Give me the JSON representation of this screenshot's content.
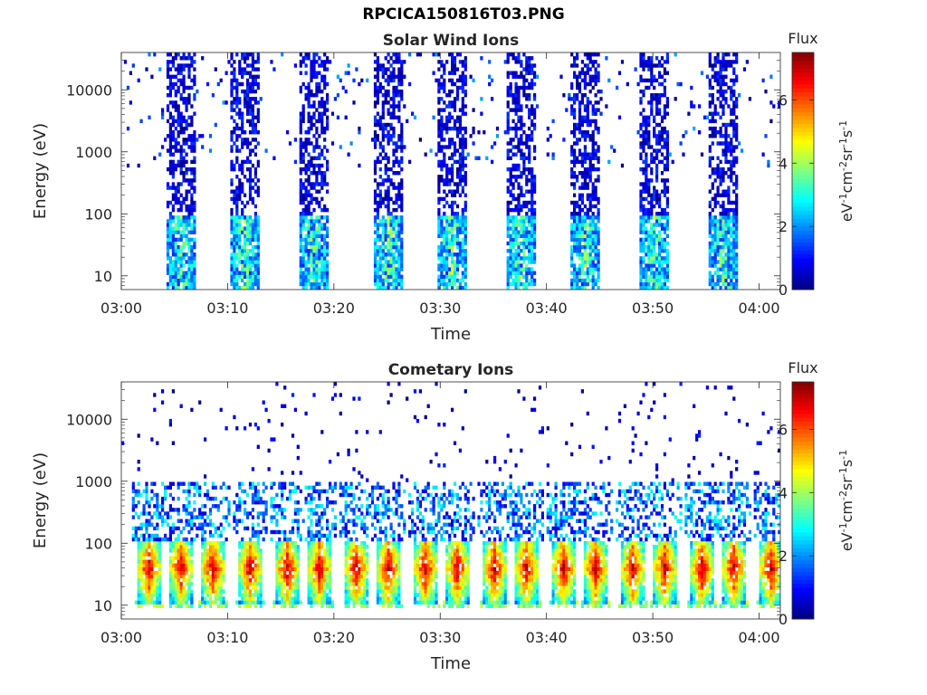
{
  "figure": {
    "title": "RPCICA150816T03.PNG",
    "colors": {
      "axis": "#262626",
      "background": "#ffffff"
    }
  },
  "chart_data": [
    {
      "type": "heatmap",
      "title": "Solar Wind Ions",
      "xlabel": "Time",
      "ylabel": "Energy (eV)",
      "x_start": "03:00",
      "x_end": "04:02",
      "x_ticks": [
        "03:00",
        "03:10",
        "03:20",
        "03:30",
        "03:40",
        "03:50",
        "04:00"
      ],
      "y_scale": "log",
      "y_ticks": [
        10,
        100,
        1000,
        10000
      ],
      "y_tick_labels": [
        "10",
        "100",
        "1000",
        "10000"
      ],
      "ylim": [
        6,
        40000
      ],
      "colorbar": {
        "label": "Flux",
        "units": "eV-1cm-2sr-1s-1",
        "range": [
          0,
          7.5
        ],
        "ticks": [
          0,
          2,
          4,
          6
        ],
        "colormap": "jet"
      },
      "burst_center_times": [
        "03:05.5",
        "03:11.5",
        "03:18",
        "03:25",
        "03:31",
        "03:37.5",
        "03:43.5",
        "03:50",
        "03:56.5"
      ],
      "description_of_structure": {
        "burst_energy_range_eV": [
          6,
          40000
        ],
        "low_energy_peak_flux": 4.2,
        "high_energy_typical_flux": 0.5
      }
    },
    {
      "type": "heatmap",
      "title": "Cometary Ions",
      "xlabel": "Time",
      "ylabel": "Energy (eV)",
      "x_start": "03:00",
      "x_end": "04:02",
      "x_ticks": [
        "03:00",
        "03:10",
        "03:20",
        "03:30",
        "03:40",
        "03:50",
        "04:00"
      ],
      "y_scale": "log",
      "y_ticks": [
        10,
        100,
        1000,
        10000
      ],
      "y_tick_labels": [
        "10",
        "100",
        "1000",
        "10000"
      ],
      "ylim": [
        6,
        40000
      ],
      "colorbar": {
        "label": "Flux",
        "units": "eV-1cm-2sr-1s-1",
        "range": [
          0,
          7.5
        ],
        "ticks": [
          0,
          2,
          4,
          6
        ],
        "colormap": "jet"
      },
      "burst_center_times": [
        "03:02.5",
        "03:05.5",
        "03:08.5",
        "03:12",
        "03:15.5",
        "03:18.5",
        "03:22",
        "03:25",
        "03:28.5",
        "03:31.5",
        "03:35",
        "03:38",
        "03:41.5",
        "03:44.5",
        "03:48",
        "03:51",
        "03:54.5",
        "03:57.5",
        "04:01"
      ],
      "description_of_structure": {
        "burst_energy_range_eV": [
          10,
          100
        ],
        "peak_energy_eV": 40,
        "peak_flux": 7
      }
    }
  ]
}
